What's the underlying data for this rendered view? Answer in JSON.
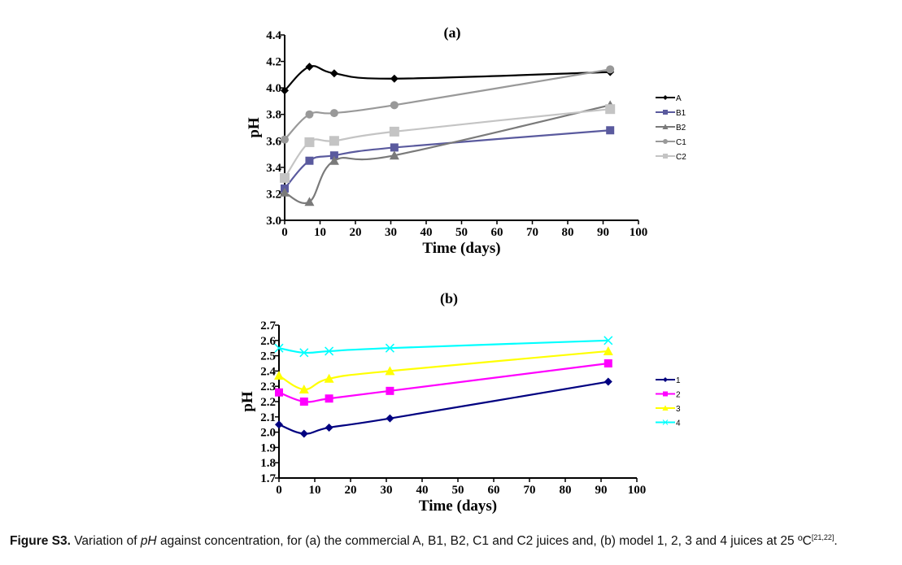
{
  "chart_data": [
    {
      "type": "line",
      "title": "(a)",
      "xlabel": "Time (days)",
      "ylabel": "pH",
      "xlim": [
        0,
        100
      ],
      "ylim": [
        3.0,
        4.4
      ],
      "xticks": [
        "0",
        "10",
        "20",
        "30",
        "40",
        "50",
        "60",
        "70",
        "80",
        "90",
        "100"
      ],
      "yticks": [
        "3.0",
        "3.2",
        "3.4",
        "3.6",
        "3.8",
        "4.0",
        "4.2",
        "4.4"
      ],
      "grid": false,
      "legend_position": "right",
      "x": [
        0,
        7,
        14,
        31,
        92
      ],
      "series": [
        {
          "name": "A",
          "color": "#000000",
          "marker": "diamond",
          "values": [
            3.98,
            4.16,
            4.11,
            4.07,
            4.12
          ]
        },
        {
          "name": "B1",
          "color": "#5a5a9e",
          "marker": "square",
          "values": [
            3.24,
            3.45,
            3.49,
            3.55,
            3.68
          ]
        },
        {
          "name": "B2",
          "color": "#7a7a7a",
          "marker": "triangle",
          "values": [
            3.21,
            3.14,
            3.45,
            3.49,
            3.87
          ]
        },
        {
          "name": "C1",
          "color": "#999999",
          "marker": "circle",
          "values": [
            3.61,
            3.8,
            3.81,
            3.87,
            4.14
          ]
        },
        {
          "name": "C2",
          "color": "#c4c4c4",
          "marker": "square-large",
          "values": [
            3.32,
            3.59,
            3.6,
            3.67,
            3.84
          ]
        }
      ]
    },
    {
      "type": "line",
      "title": "(b)",
      "xlabel": "Time (days)",
      "ylabel": "pH",
      "xlim": [
        0,
        100
      ],
      "ylim": [
        1.7,
        2.7
      ],
      "xticks": [
        "0",
        "10",
        "20",
        "30",
        "40",
        "50",
        "60",
        "70",
        "80",
        "90",
        "100"
      ],
      "yticks": [
        "1.7",
        "1.8",
        "1.9",
        "2.0",
        "2.1",
        "2.2",
        "2.3",
        "2.4",
        "2.5",
        "2.6",
        "2.7"
      ],
      "grid": false,
      "legend_position": "right",
      "x": [
        0,
        7,
        14,
        31,
        92
      ],
      "series": [
        {
          "name": "1",
          "color": "#000080",
          "marker": "diamond",
          "values": [
            2.05,
            1.99,
            2.03,
            2.09,
            2.33
          ]
        },
        {
          "name": "2",
          "color": "#ff00ff",
          "marker": "square",
          "values": [
            2.26,
            2.2,
            2.22,
            2.27,
            2.45
          ]
        },
        {
          "name": "3",
          "color": "#ffff00",
          "marker": "triangle",
          "values": [
            2.37,
            2.28,
            2.35,
            2.4,
            2.53
          ]
        },
        {
          "name": "4",
          "color": "#00ffff",
          "marker": "cross",
          "values": [
            2.55,
            2.52,
            2.53,
            2.55,
            2.6
          ]
        }
      ]
    }
  ],
  "caption": {
    "label": "Figure S3.",
    "text_before_italic": " Variation of ",
    "italic": "pH",
    "text_after_italic": " against concentration, for (a) the commercial A, B1, B2, C1 and C2 juices and, (b) model 1, 2, 3 and 4 juices at 25 ºC",
    "refs": "[21,22]",
    "end": "."
  }
}
